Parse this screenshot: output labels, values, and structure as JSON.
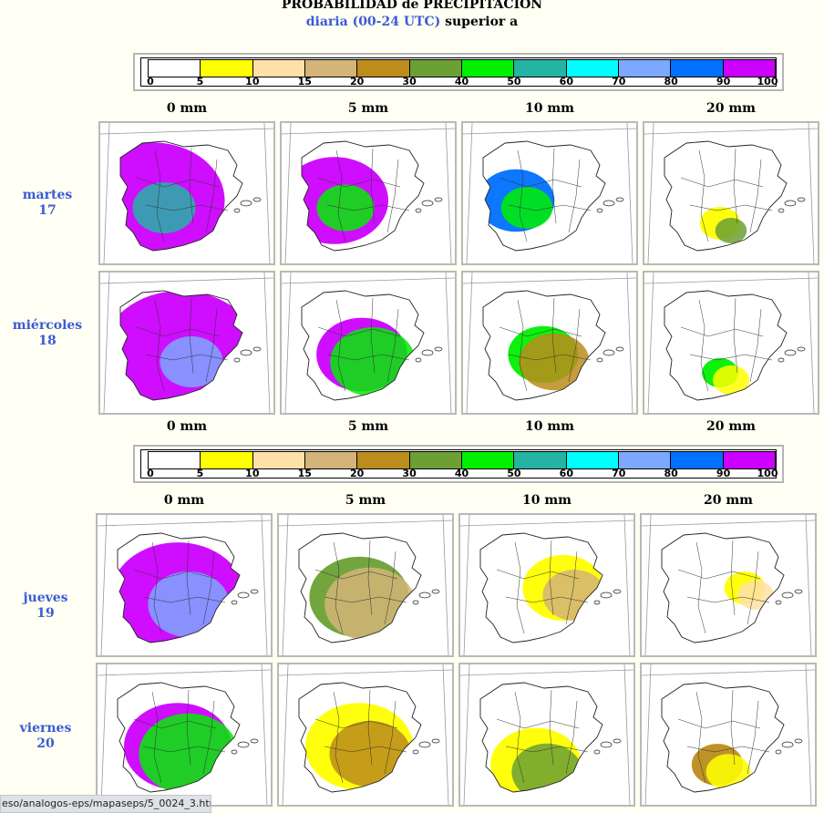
{
  "header": {
    "title": "PROBABILIDAD de PRECIPITACION",
    "subtitle_blue": "diaria (00-24 UTC)",
    "subtitle_black": "superior a"
  },
  "legend": {
    "colors": [
      "#ffffff",
      "#ffff00",
      "#ffe0a8",
      "#d4b478",
      "#bc8c1c",
      "#6ca034",
      "#00f000",
      "#24b4a4",
      "#00ffff",
      "#7ca8ff",
      "#0070ff",
      "#cc00ff"
    ],
    "ticks": [
      "0",
      "5",
      "10",
      "15",
      "20",
      "30",
      "40",
      "50",
      "60",
      "70",
      "80",
      "90",
      "100"
    ]
  },
  "thresholds": [
    "0 mm",
    "5 mm",
    "10 mm",
    "20 mm"
  ],
  "days": [
    {
      "name": "martes",
      "num": "17"
    },
    {
      "name": "miércoles",
      "num": "18"
    },
    {
      "name": "jueves",
      "num": "19"
    },
    {
      "name": "viernes",
      "num": "20"
    }
  ],
  "maps": [
    [
      {
        "level": [
          [
            "#cc00ff",
            0.62
          ],
          [
            "#24b4a4",
            0.12
          ]
        ],
        "focus": "west"
      },
      {
        "level": [
          [
            "#cc00ff",
            0.35
          ],
          [
            "#00f000",
            0.1
          ]
        ],
        "focus": "west"
      },
      {
        "level": [
          [
            "#0070ff",
            0.18
          ],
          [
            "#00f000",
            0.08
          ]
        ],
        "focus": "west"
      },
      {
        "level": [
          [
            "#ffff00",
            0.05
          ],
          [
            "#6ca034",
            0.03
          ]
        ],
        "focus": "south"
      }
    ],
    [
      {
        "level": [
          [
            "#cc00ff",
            0.75
          ],
          [
            "#7ca8ff",
            0.12
          ]
        ],
        "focus": "center"
      },
      {
        "level": [
          [
            "#cc00ff",
            0.25
          ],
          [
            "#00f000",
            0.22
          ]
        ],
        "focus": "center"
      },
      {
        "level": [
          [
            "#00f000",
            0.15
          ],
          [
            "#bc8c1c",
            0.15
          ]
        ],
        "focus": "center"
      },
      {
        "level": [
          [
            "#00f000",
            0.04
          ],
          [
            "#ffff00",
            0.04
          ]
        ],
        "focus": "south"
      }
    ],
    [
      {
        "level": [
          [
            "#cc00ff",
            0.55
          ],
          [
            "#7ca8ff",
            0.2
          ]
        ],
        "focus": "center"
      },
      {
        "level": [
          [
            "#6ca034",
            0.3
          ],
          [
            "#d4b478",
            0.25
          ]
        ],
        "focus": "center"
      },
      {
        "level": [
          [
            "#ffff00",
            0.2
          ],
          [
            "#d4b478",
            0.12
          ]
        ],
        "focus": "east"
      },
      {
        "level": [
          [
            "#ffff00",
            0.05
          ],
          [
            "#ffe0a8",
            0.04
          ]
        ],
        "focus": "east"
      }
    ],
    [
      {
        "level": [
          [
            "#cc00ff",
            0.35
          ],
          [
            "#00f000",
            0.3
          ]
        ],
        "focus": "center"
      },
      {
        "level": [
          [
            "#ffff00",
            0.35
          ],
          [
            "#bc8c1c",
            0.2
          ]
        ],
        "focus": "center"
      },
      {
        "level": [
          [
            "#ffff00",
            0.25
          ],
          [
            "#6ca034",
            0.15
          ]
        ],
        "focus": "south"
      },
      {
        "level": [
          [
            "#bc8c1c",
            0.08
          ],
          [
            "#ffff00",
            0.06
          ]
        ],
        "focus": "south"
      }
    ]
  ],
  "status": {
    "url": "eso/analogos-eps/mapaseps/5_0024_3.html"
  }
}
